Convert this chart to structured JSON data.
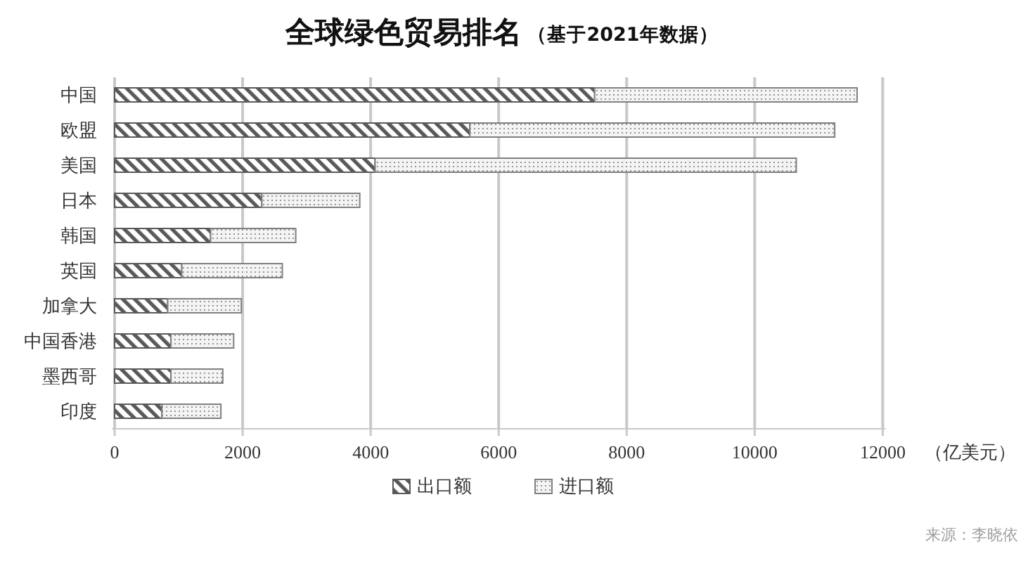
{
  "chart_data": {
    "type": "bar",
    "orientation": "horizontal",
    "stacked": true,
    "title": "全球绿色贸易排名",
    "subtitle": "（基于2021年数据）",
    "xlabel": "（亿美元）",
    "categories": [
      "中国",
      "欧盟",
      "美国",
      "日本",
      "韩国",
      "英国",
      "加拿大",
      "中国香港",
      "墨西哥",
      "印度"
    ],
    "series": [
      {
        "name": "出口额",
        "color": "#595959",
        "values": [
          7500,
          5550,
          4070,
          2300,
          1500,
          1050,
          830,
          880,
          880,
          740
        ]
      },
      {
        "name": "进口额",
        "color": "#7f7f7f",
        "values": [
          4100,
          5700,
          6580,
          1530,
          1330,
          1570,
          1150,
          980,
          810,
          920
        ]
      }
    ],
    "xlim": [
      0,
      12000
    ],
    "xticks": [
      0,
      2000,
      4000,
      6000,
      8000,
      10000,
      12000
    ],
    "grid": "x",
    "legend": "bottom",
    "annotations": [
      "来源：李晓依"
    ]
  }
}
